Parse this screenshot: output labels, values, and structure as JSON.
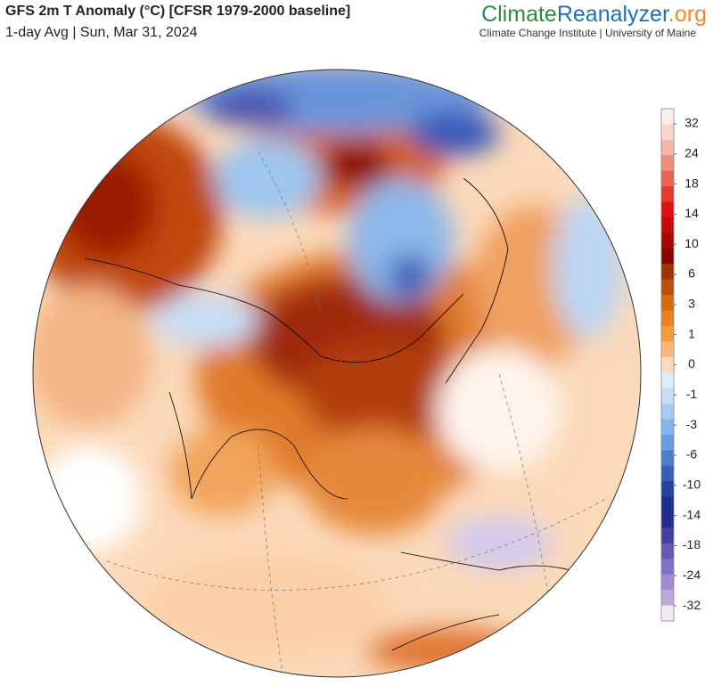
{
  "header": {
    "title": "GFS 2m T Anomaly (°C) [CFSR 1979-2000 baseline]",
    "subtitle": "1-day Avg | Sun, Mar 31, 2024"
  },
  "brand": {
    "name_1": "Climate",
    "name_2": "Reanalyzer",
    "suffix": ".org",
    "tagline": "Climate Change Institute | University of Maine"
  },
  "legend": {
    "colors": [
      "#fbeeee",
      "#f8d5cf",
      "#f4b5a8",
      "#f08e7d",
      "#eb6452",
      "#e63a2e",
      "#de120e",
      "#c30b0b",
      "#a60606",
      "#8a0303",
      "#9c3508",
      "#bb4f0e",
      "#d9690f",
      "#ed801f",
      "#f49b42",
      "#f8b97b",
      "#fcdcbc",
      "#dfecfa",
      "#c6ddf6",
      "#a8caf0",
      "#87b4e9",
      "#6a9ddd",
      "#4c7ecb",
      "#3560b5",
      "#22449c",
      "#1b2f86",
      "#2a2a8e",
      "#45409f",
      "#6559b3",
      "#8470c3",
      "#a28bd2",
      "#bea8df",
      "#f4e9f5"
    ],
    "ticks": [
      32,
      24,
      18,
      14,
      10,
      6,
      3,
      1,
      0,
      -1,
      -3,
      -6,
      -10,
      -14,
      -18,
      -24,
      -32
    ]
  }
}
